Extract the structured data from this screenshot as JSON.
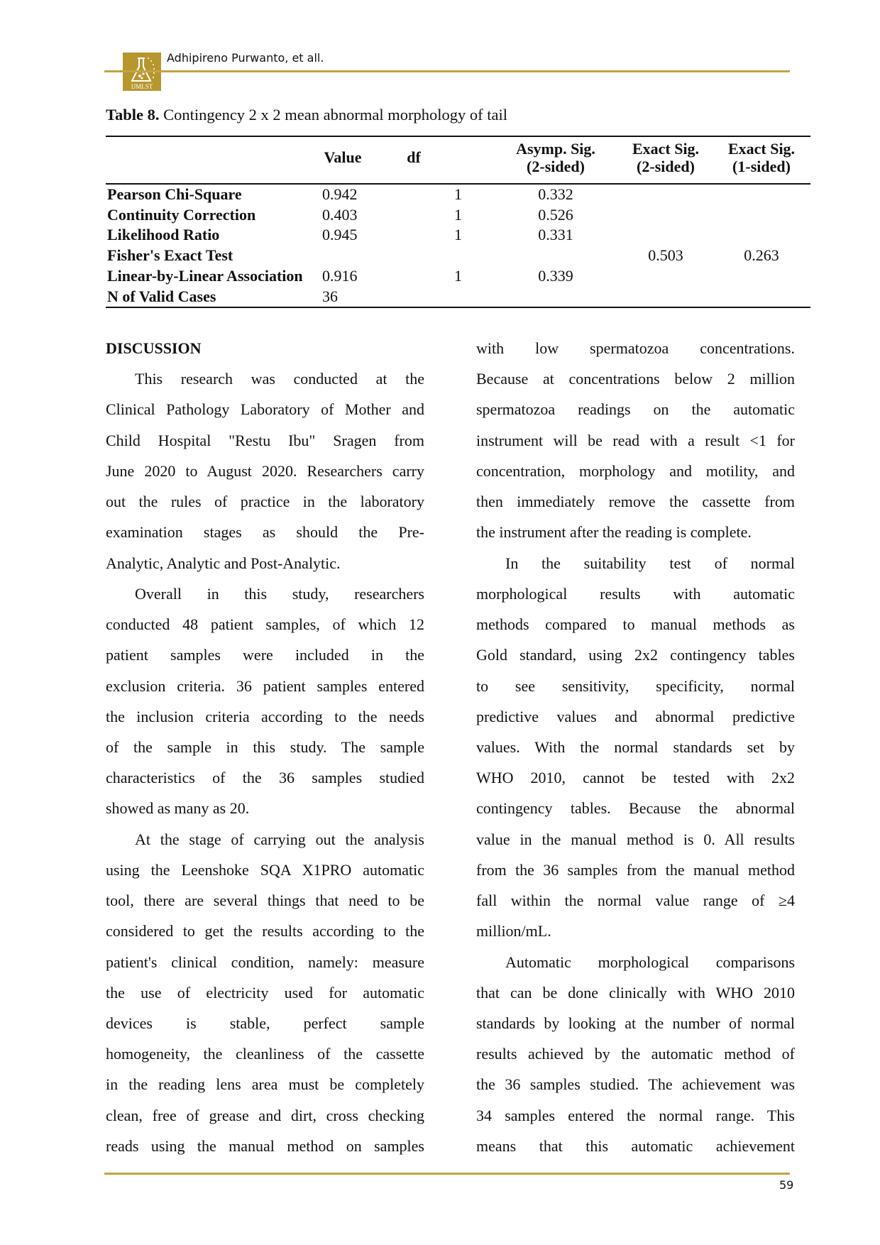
{
  "header": {
    "journal_logo_text": "IJMLST",
    "running_head": "Adhipireno Purwanto, et all.",
    "rule_color": "#c4a443"
  },
  "table": {
    "caption_label": "Table 8.",
    "caption_text": "Contingency 2 x 2 mean abnormal morphology of tail",
    "headers": [
      {
        "line1": "Value",
        "line2": ""
      },
      {
        "line1": "df",
        "line2": ""
      },
      {
        "line1": "Asymp. Sig.",
        "line2": "(2-sided)"
      },
      {
        "line1": "Exact Sig.",
        "line2": "(2-sided)"
      },
      {
        "line1": "Exact Sig.",
        "line2": "(1-sided)"
      }
    ],
    "rows": [
      {
        "label": "Pearson Chi-Square",
        "value": "0.942",
        "df": "1",
        "asymp": "0.332",
        "exact2": "",
        "exact1": ""
      },
      {
        "label": "Continuity Correction",
        "value": "0.403",
        "df": "1",
        "asymp": "0.526",
        "exact2": "",
        "exact1": ""
      },
      {
        "label": "Likelihood Ratio",
        "value": "0.945",
        "df": "1",
        "asymp": "0.331",
        "exact2": "",
        "exact1": ""
      },
      {
        "label": "Fisher's Exact Test",
        "value": "",
        "df": "",
        "asymp": "",
        "exact2": "0.503",
        "exact1": "0.263"
      },
      {
        "label": "Linear-by-Linear Association",
        "value": "0.916",
        "df": "1",
        "asymp": "0.339",
        "exact2": "",
        "exact1": ""
      },
      {
        "label": "N of Valid Cases",
        "value": "36",
        "df": "",
        "asymp": "",
        "exact2": "",
        "exact1": ""
      }
    ]
  },
  "body": {
    "heading": "DISCUSSION",
    "left_column": [
      [
        "This research was conducted at the",
        "Clinical Pathology Laboratory of Mother and",
        "Child Hospital \"Restu Ibu\"  Sragen from",
        "June 2020 to August 2020. Researchers carry",
        "out the rules of practice in the laboratory",
        "examination stages as should the Pre-",
        "Analytic, Analytic and Post-Analytic."
      ],
      [
        "Overall in this study, researchers",
        "conducted 48 patient samples, of which 12",
        "patient samples were included in the",
        "exclusion criteria. 36 patient samples entered",
        "the inclusion criteria according to the needs",
        "of the sample in this study. The sample",
        "characteristics of the 36 samples studied",
        "showed as many as 20."
      ],
      [
        "At the stage of carrying out the analysis",
        "using the Leenshoke SQA X1PRO automatic",
        "tool, there are several things that need to be",
        "considered to get the results according to the",
        "patient's clinical condition, namely: measure",
        "the use of electricity used for automatic",
        "devices is stable, perfect sample",
        "homogeneity, the cleanliness of the cassette",
        "in the reading lens area must be completely",
        "clean, free of grease and dirt, cross checking",
        "reads using the manual method on samples"
      ]
    ],
    "right_column": [
      [
        "with low spermatozoa concentrations.",
        "Because at concentrations below 2 million",
        "spermatozoa readings on the automatic",
        "instrument will be read with a result <1 for",
        "concentration, morphology and motility, and",
        "then immediately remove the cassette from",
        "the instrument after the reading is complete."
      ],
      [
        "In the suitability test of normal",
        "morphological results with automatic",
        "methods compared to manual methods as",
        "Gold standard, using 2x2 contingency tables",
        "to see sensitivity, specificity, normal",
        "predictive values and abnormal predictive",
        "values. With the normal standards set by",
        "WHO 2010, cannot be tested with 2x2",
        "contingency tables. Because the abnormal",
        "value in the manual method is 0. All results",
        "from the 36 samples from the manual method",
        "fall within the normal value range of ≥4",
        "million/mL."
      ],
      [
        "Automatic morphological comparisons",
        "that can be done clinically with WHO 2010",
        "standards by looking at the number of normal",
        "results achieved by the automatic method of",
        "the 36 samples studied. The achievement was",
        "34 samples entered the normal range. This",
        "means that this automatic achievement"
      ]
    ]
  },
  "footer": {
    "page_number": "59"
  }
}
